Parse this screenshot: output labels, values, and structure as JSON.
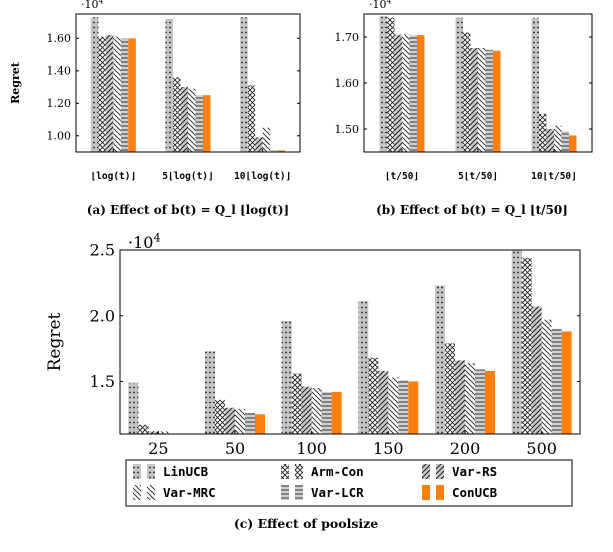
{
  "colors": {
    "orange": "#ff7f0e",
    "gray": "#bdbdbd",
    "axis": "#000000"
  },
  "legend": [
    {
      "label": "LinUCB",
      "pattern": "dots"
    },
    {
      "label": "Arm-Con",
      "pattern": "cross"
    },
    {
      "label": "Var-RS",
      "pattern": "ne"
    },
    {
      "label": "Var-MRC",
      "pattern": "nw"
    },
    {
      "label": "Var-LCR",
      "pattern": "horiz"
    },
    {
      "label": "ConUCB",
      "pattern": "orange"
    }
  ],
  "chart_data": [
    {
      "type": "bar",
      "caption": "(a) Effect of b(t) = Q_l ⌊log(t)⌋",
      "ylabel": "Regret",
      "multiplier": "·10^4",
      "ylim": [
        0.9,
        1.75
      ],
      "yticks": [
        "1.00",
        "1.20",
        "1.40",
        "1.60"
      ],
      "categories": [
        "⌊log(t)⌋",
        "5⌊log(t)⌋",
        "10⌊log(t)⌋"
      ],
      "series": [
        {
          "name": "LinUCB",
          "values": [
            1.73,
            1.72,
            1.73
          ]
        },
        {
          "name": "Arm-Con",
          "values": [
            1.61,
            1.36,
            1.31
          ]
        },
        {
          "name": "Var-RS",
          "values": [
            1.62,
            1.3,
            0.99
          ]
        },
        {
          "name": "Var-MRC",
          "values": [
            1.61,
            1.29,
            1.05
          ]
        },
        {
          "name": "Var-LCR",
          "values": [
            1.6,
            1.25,
            0.91
          ]
        },
        {
          "name": "ConUCB",
          "values": [
            1.6,
            1.25,
            0.91
          ]
        }
      ]
    },
    {
      "type": "bar",
      "caption": "(b) Effect of b(t) = Q_l ⌊t/50⌋",
      "multiplier": "·10^4",
      "ylim": [
        1.45,
        1.75
      ],
      "yticks": [
        "1.50",
        "1.60",
        "1.70"
      ],
      "categories": [
        "⌊t/50⌋",
        "5⌊t/50⌋",
        "10⌊t/50⌋"
      ],
      "series": [
        {
          "name": "LinUCB",
          "values": [
            1.745,
            1.742,
            1.742
          ]
        },
        {
          "name": "Arm-Con",
          "values": [
            1.742,
            1.71,
            1.533
          ]
        },
        {
          "name": "Var-RS",
          "values": [
            1.705,
            1.676,
            1.5
          ]
        },
        {
          "name": "Var-MRC",
          "values": [
            1.706,
            1.676,
            1.507
          ]
        },
        {
          "name": "Var-LCR",
          "values": [
            1.704,
            1.672,
            1.495
          ]
        },
        {
          "name": "ConUCB",
          "values": [
            1.704,
            1.67,
            1.486
          ]
        }
      ]
    },
    {
      "type": "bar",
      "caption": "(c) Effect of poolsize",
      "ylabel": "Regret",
      "multiplier": "·10^4",
      "ylim": [
        1.1,
        2.5
      ],
      "yticks": [
        "1.5",
        "2.0",
        "2.5"
      ],
      "categories": [
        "25",
        "50",
        "100",
        "150",
        "200",
        "500"
      ],
      "series": [
        {
          "name": "LinUCB",
          "values": [
            1.49,
            1.73,
            1.96,
            2.11,
            2.23,
            2.5
          ]
        },
        {
          "name": "Arm-Con",
          "values": [
            1.17,
            1.36,
            1.56,
            1.68,
            1.79,
            2.44
          ]
        },
        {
          "name": "Var-RS",
          "values": [
            1.12,
            1.3,
            1.46,
            1.58,
            1.66,
            2.07
          ]
        },
        {
          "name": "Var-MRC",
          "values": [
            1.12,
            1.29,
            1.45,
            1.53,
            1.64,
            1.97
          ]
        },
        {
          "name": "Var-LCR",
          "values": [
            1.1,
            1.26,
            1.42,
            1.51,
            1.59,
            1.9
          ]
        },
        {
          "name": "ConUCB",
          "values": [
            1.1,
            1.25,
            1.42,
            1.5,
            1.58,
            1.88
          ]
        }
      ]
    }
  ]
}
